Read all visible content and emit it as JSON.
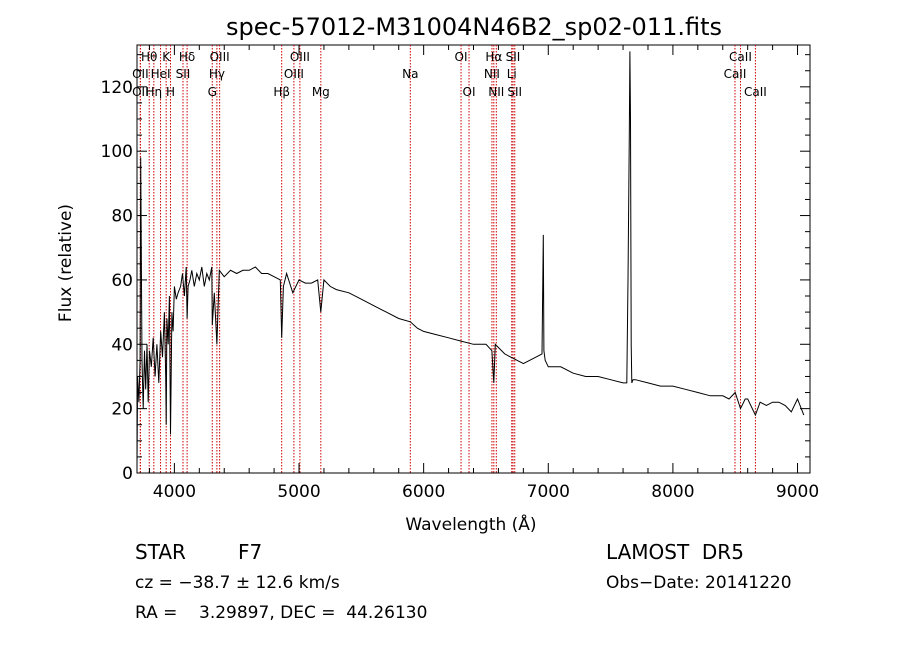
{
  "chart_data": {
    "type": "line",
    "title": "spec-57012-M31004N46B2_sp02-011.fits",
    "xlabel": "Wavelength (Å)",
    "ylabel": "Flux (relative)",
    "xlim": [
      3700,
      9100
    ],
    "ylim": [
      0,
      133
    ],
    "xticks": [
      4000,
      5000,
      6000,
      7000,
      8000,
      9000
    ],
    "yticks": [
      0,
      20,
      40,
      60,
      80,
      100,
      120
    ],
    "grid": false,
    "line_color": "#000000",
    "marker_color": "#cc0000",
    "spectral_lines": [
      {
        "name": "Hθ",
        "x": 3798,
        "row": 0
      },
      {
        "name": "OII",
        "x": 3727,
        "row": 1
      },
      {
        "name": "OII",
        "x": 3727,
        "row": 2
      },
      {
        "name": "K",
        "x": 3934,
        "row": 0
      },
      {
        "name": "HeI",
        "x": 3889,
        "row": 1
      },
      {
        "name": "Hη",
        "x": 3835,
        "row": 2
      },
      {
        "name": "Hδ",
        "x": 4102,
        "row": 0
      },
      {
        "name": "SII",
        "x": 4069,
        "row": 1
      },
      {
        "name": "H",
        "x": 3969,
        "row": 2
      },
      {
        "name": "OIII",
        "x": 4363,
        "row": 0
      },
      {
        "name": "Hγ",
        "x": 4341,
        "row": 1
      },
      {
        "name": "G",
        "x": 4304,
        "row": 2
      },
      {
        "name": "OIII",
        "x": 5007,
        "row": 0
      },
      {
        "name": "OIII",
        "x": 4959,
        "row": 1
      },
      {
        "name": "Hβ",
        "x": 4861,
        "row": 2
      },
      {
        "name": "Mg",
        "x": 5175,
        "row": 2
      },
      {
        "name": "Na",
        "x": 5893,
        "row": 1
      },
      {
        "name": "OI",
        "x": 6300,
        "row": 0
      },
      {
        "name": "OI",
        "x": 6364,
        "row": 2
      },
      {
        "name": "Hα",
        "x": 6563,
        "row": 0
      },
      {
        "name": "NII",
        "x": 6548,
        "row": 1
      },
      {
        "name": "NII",
        "x": 6583,
        "row": 2
      },
      {
        "name": "SII",
        "x": 6717,
        "row": 0
      },
      {
        "name": "Li",
        "x": 6707,
        "row": 1
      },
      {
        "name": "SII",
        "x": 6731,
        "row": 2
      },
      {
        "name": "CaII",
        "x": 8542,
        "row": 0
      },
      {
        "name": "CaII",
        "x": 8498,
        "row": 1
      },
      {
        "name": "CaII",
        "x": 8662,
        "row": 2
      }
    ],
    "series": [
      {
        "x": [
          3700,
          3705,
          3715,
          3725,
          3730,
          3740,
          3750,
          3760,
          3770,
          3780,
          3790,
          3800,
          3815,
          3830,
          3845,
          3860,
          3875,
          3890,
          3905,
          3920,
          3930,
          3934,
          3940,
          3950,
          3960,
          3969,
          3980,
          3990,
          4000,
          4015,
          4030,
          4050,
          4065,
          4080,
          4095,
          4102,
          4110,
          4125,
          4140,
          4160,
          4180,
          4200,
          4220,
          4240,
          4260,
          4280,
          4300,
          4304,
          4320,
          4341,
          4360,
          4400,
          4450,
          4500,
          4550,
          4600,
          4650,
          4700,
          4750,
          4800,
          4850,
          4861,
          4875,
          4900,
          4950,
          5000,
          5050,
          5100,
          5150,
          5175,
          5200,
          5250,
          5300,
          5400,
          5500,
          5600,
          5700,
          5800,
          5893,
          5950,
          6000,
          6100,
          6200,
          6300,
          6400,
          6500,
          6548,
          6563,
          6575,
          6600,
          6650,
          6700,
          6800,
          6900,
          6950,
          6960,
          6965,
          6975,
          7000,
          7100,
          7200,
          7300,
          7400,
          7500,
          7600,
          7630,
          7640,
          7650,
          7655,
          7660,
          7665,
          7670,
          7680,
          7700,
          7800,
          7900,
          8000,
          8100,
          8200,
          8300,
          8400,
          8450,
          8500,
          8542,
          8580,
          8600,
          8662,
          8700,
          8750,
          8800,
          8850,
          8900,
          8950,
          9000,
          9050
        ],
        "values": [
          2,
          30,
          22,
          35,
          98,
          35,
          20,
          38,
          26,
          40,
          22,
          38,
          33,
          42,
          30,
          40,
          28,
          44,
          36,
          50,
          30,
          15,
          48,
          40,
          55,
          12,
          50,
          44,
          58,
          54,
          56,
          58,
          62,
          55,
          64,
          48,
          58,
          60,
          63,
          58,
          62,
          60,
          64,
          58,
          62,
          60,
          64,
          46,
          56,
          40,
          63,
          61,
          63,
          62,
          63,
          63,
          64,
          62,
          62,
          61,
          60,
          42,
          58,
          62,
          56,
          60,
          59,
          59,
          60,
          50,
          60,
          58,
          57,
          56,
          54,
          52,
          50,
          48,
          47,
          45,
          44,
          43,
          42,
          41,
          40,
          40,
          38,
          28,
          40,
          39,
          37,
          36,
          34,
          36,
          37,
          74,
          38,
          35,
          33,
          33,
          31,
          30,
          30,
          29,
          28,
          28,
          60,
          105,
          131,
          110,
          40,
          28,
          29,
          29,
          28,
          27,
          27,
          26,
          25,
          24,
          24,
          23,
          25,
          20,
          23,
          23,
          18,
          22,
          21,
          22,
          22,
          21,
          19,
          23,
          18
        ]
      }
    ]
  },
  "info": {
    "class": "STAR",
    "subclass": "F7",
    "survey": "LAMOST  DR5",
    "cz": "cz = −38.7 ± 12.6 km/s",
    "obs_date": "Obs−Date: 20141220",
    "radec": "RA =    3.29897, DEC =  44.26130"
  }
}
